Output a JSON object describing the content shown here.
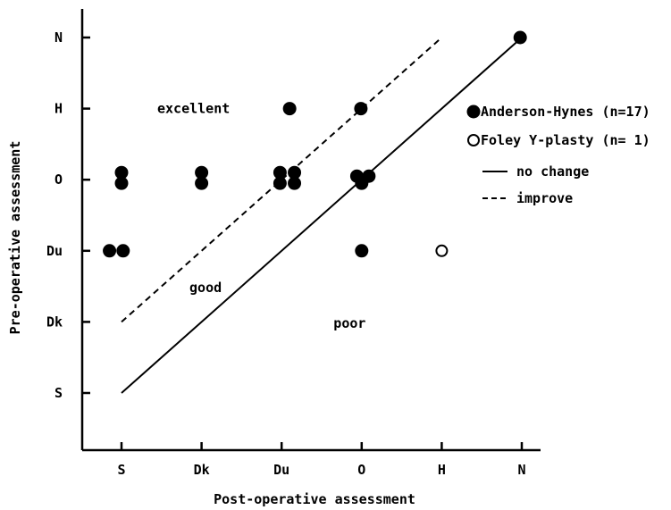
{
  "chart_data": {
    "type": "scatter",
    "xlabel": "Post-operative assessment",
    "ylabel": "Pre-operative assessment",
    "categories": [
      "S",
      "Dk",
      "Du",
      "O",
      "H",
      "N"
    ],
    "x_ticks": [
      "S",
      "Dk",
      "Du",
      "O",
      "H",
      "N"
    ],
    "y_ticks": [
      "S",
      "Dk",
      "Du",
      "O",
      "H",
      "N"
    ],
    "xlim": [
      -0.45,
      5.1
    ],
    "ylim": [
      -0.6,
      5.3
    ],
    "grid": false,
    "legend_position": "right",
    "series": [
      {
        "name": "Anderson-Hynes (n=17)",
        "marker": "filled-circle",
        "color": "#000000",
        "points": [
          {
            "x": -0.15,
            "y": 2.0
          },
          {
            "x": 0.02,
            "y": 2.0
          },
          {
            "x": 0.0,
            "y": 3.1
          },
          {
            "x": 0.0,
            "y": 2.95
          },
          {
            "x": 1.0,
            "y": 3.1
          },
          {
            "x": 1.0,
            "y": 2.95
          },
          {
            "x": 1.98,
            "y": 3.1
          },
          {
            "x": 1.98,
            "y": 2.95
          },
          {
            "x": 2.1,
            "y": 4.0
          },
          {
            "x": 2.16,
            "y": 3.1
          },
          {
            "x": 2.16,
            "y": 2.95
          },
          {
            "x": 2.99,
            "y": 4.0
          },
          {
            "x": 2.94,
            "y": 3.05
          },
          {
            "x": 3.09,
            "y": 3.05
          },
          {
            "x": 3.0,
            "y": 2.95
          },
          {
            "x": 3.0,
            "y": 2.0
          },
          {
            "x": 4.98,
            "y": 5.0
          }
        ]
      },
      {
        "name": "Foley Y-plasty (n= 1)",
        "marker": "open-circle",
        "color": "#000000",
        "points": [
          {
            "x": 4.0,
            "y": 2.0
          }
        ]
      }
    ],
    "reference_lines": [
      {
        "name": "no change",
        "style": "solid",
        "from": [
          0,
          0
        ],
        "to": [
          5,
          5
        ]
      },
      {
        "name": "improve",
        "style": "dashed",
        "from": [
          0,
          1
        ],
        "to": [
          4,
          5
        ]
      }
    ],
    "annotations": [
      {
        "text": "excellent",
        "x": 0.9,
        "y": 4.0
      },
      {
        "text": "good",
        "x": 1.05,
        "y": 1.48
      },
      {
        "text": "poor",
        "x": 2.85,
        "y": 0.98
      }
    ]
  }
}
